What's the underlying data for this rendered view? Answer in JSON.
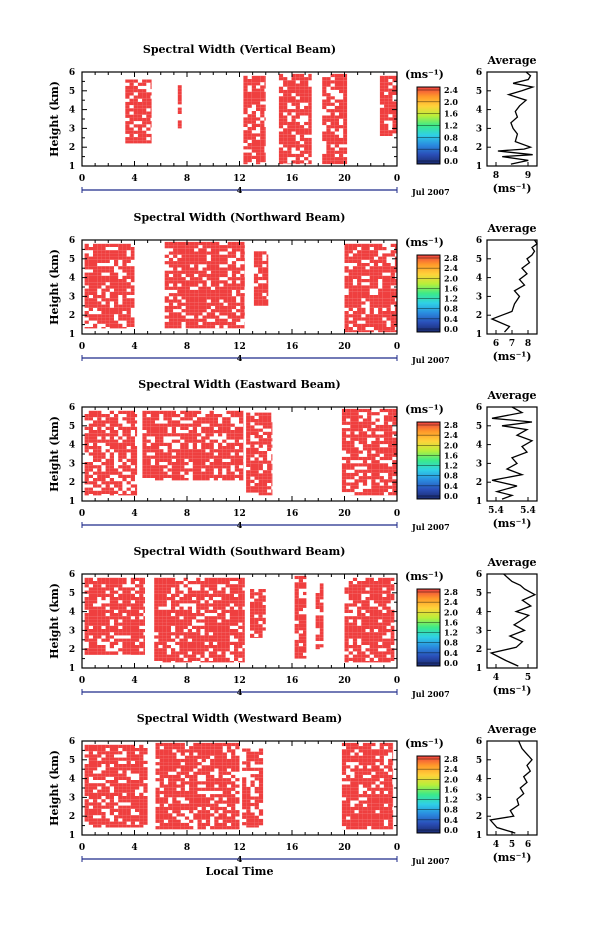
{
  "chart_data": [
    {
      "type": "heatmap",
      "title": "Spectral Width (Vertical Beam)",
      "ylabel": "Height (km)",
      "x_ticks": [
        "0",
        "4",
        "8",
        "12",
        "16",
        "20",
        "0"
      ],
      "y_ticks": [
        "1",
        "2",
        "3",
        "4",
        "5",
        "6"
      ],
      "date_marker": "4",
      "date_label": "Jul 2007",
      "xlim_hours": [
        0,
        24
      ],
      "ylim_km": [
        1,
        6
      ],
      "colorbar": {
        "unit": "(ms⁻¹)",
        "ticks": [
          "0.0",
          "0.4",
          "0.8",
          "1.2",
          "1.6",
          "2.0",
          "2.4"
        ]
      },
      "filled_regions": [
        {
          "t0": 3.3,
          "t1": 5.3,
          "h0": 2.2,
          "h1": 5.6
        },
        {
          "t0": 7.3,
          "t1": 7.6,
          "h0": 3.0,
          "h1": 5.3
        },
        {
          "t0": 12.3,
          "t1": 14.0,
          "h0": 1.1,
          "h1": 5.8
        },
        {
          "t0": 15.0,
          "t1": 17.5,
          "h0": 1.1,
          "h1": 5.9
        },
        {
          "t0": 18.3,
          "t1": 20.2,
          "h0": 1.1,
          "h1": 5.9
        },
        {
          "t0": 22.7,
          "t1": 24.0,
          "h0": 2.6,
          "h1": 5.8
        }
      ],
      "average": {
        "title": "Average",
        "xlabel": "(ms⁻¹)",
        "x_ticks": [
          "8",
          "9"
        ],
        "xlim": [
          7.5,
          9.8
        ],
        "ylim": [
          1,
          6
        ],
        "x": [
          8.6,
          9.4,
          8.2,
          9.6,
          8.0,
          9.2,
          9.5,
          8.8,
          8.9,
          8.7,
          8.6,
          8.9,
          8.8,
          9.0,
          9.3,
          8.5,
          9.1,
          9.6,
          8.7,
          9.4,
          9.5,
          9.3
        ],
        "y": [
          1.1,
          1.3,
          1.5,
          1.6,
          1.8,
          1.9,
          2.0,
          2.3,
          2.7,
          3.0,
          3.3,
          3.6,
          3.9,
          4.2,
          4.5,
          4.8,
          5.0,
          5.2,
          5.4,
          5.6,
          5.8,
          6.0
        ]
      }
    },
    {
      "type": "heatmap",
      "title": "Spectral Width (Northward Beam)",
      "ylabel": "Height (km)",
      "x_ticks": [
        "0",
        "4",
        "8",
        "12",
        "16",
        "20",
        "0"
      ],
      "y_ticks": [
        "1",
        "2",
        "3",
        "4",
        "5",
        "6"
      ],
      "date_marker": "4",
      "date_label": "Jul 2007",
      "xlim_hours": [
        0,
        24
      ],
      "ylim_km": [
        1,
        6
      ],
      "colorbar": {
        "unit": "(ms⁻¹)",
        "ticks": [
          "0.0",
          "0.4",
          "0.8",
          "1.2",
          "1.6",
          "2.0",
          "2.4",
          "2.8"
        ]
      },
      "filled_regions": [
        {
          "t0": 0.2,
          "t1": 4.0,
          "h0": 1.3,
          "h1": 5.8
        },
        {
          "t0": 6.3,
          "t1": 12.4,
          "h0": 1.3,
          "h1": 5.9
        },
        {
          "t0": 13.1,
          "t1": 14.2,
          "h0": 2.5,
          "h1": 5.4
        },
        {
          "t0": 20.0,
          "t1": 24.0,
          "h0": 1.1,
          "h1": 5.8
        }
      ],
      "average": {
        "title": "Average",
        "xlabel": "(ms⁻¹)",
        "x_ticks": [
          "6",
          "7",
          "8"
        ],
        "xlim": [
          6,
          8
        ],
        "ylim": [
          1,
          6
        ],
        "x": [
          6.7,
          6.9,
          6.2,
          6.6,
          7.0,
          7.1,
          7.3,
          7.1,
          7.5,
          7.3,
          7.6,
          7.4,
          7.7,
          7.6,
          7.8,
          7.9,
          7.8,
          8.0,
          7.9
        ],
        "y": [
          1.1,
          1.4,
          1.8,
          2.0,
          2.2,
          2.6,
          3.0,
          3.3,
          3.6,
          3.9,
          4.2,
          4.5,
          4.8,
          5.0,
          5.2,
          5.4,
          5.6,
          5.8,
          6.0
        ]
      }
    },
    {
      "type": "heatmap",
      "title": "Spectral Width (Eastward Beam)",
      "ylabel": "Height (km)",
      "x_ticks": [
        "0",
        "4",
        "8",
        "12",
        "16",
        "20",
        "0"
      ],
      "y_ticks": [
        "1",
        "2",
        "3",
        "4",
        "5",
        "6"
      ],
      "date_marker": "4",
      "date_label": "Jul 2007",
      "xlim_hours": [
        0,
        24
      ],
      "ylim_km": [
        1,
        6
      ],
      "colorbar": {
        "unit": "(ms⁻¹)",
        "ticks": [
          "0.0",
          "0.4",
          "0.8",
          "1.2",
          "1.6",
          "2.0",
          "2.4",
          "2.8"
        ]
      },
      "filled_regions": [
        {
          "t0": 0.2,
          "t1": 4.2,
          "h0": 1.3,
          "h1": 5.8
        },
        {
          "t0": 4.6,
          "t1": 12.3,
          "h0": 2.1,
          "h1": 5.8
        },
        {
          "t0": 12.5,
          "t1": 14.5,
          "h0": 1.3,
          "h1": 5.7
        },
        {
          "t0": 19.8,
          "t1": 24.0,
          "h0": 1.3,
          "h1": 5.9
        }
      ],
      "average": {
        "title": "Average",
        "xlabel": "(ms⁻¹)",
        "x_ticks": [
          "5.4",
          "5.4"
        ],
        "xlim": [
          5.0,
          6.0
        ],
        "ylim": [
          1,
          6
        ],
        "x": [
          5.3,
          5.5,
          5.2,
          5.6,
          5.1,
          5.7,
          5.4,
          5.6,
          5.5,
          5.8,
          5.7,
          5.9,
          5.6,
          5.8,
          5.3,
          5.9,
          5.1,
          5.7,
          5.5
        ],
        "y": [
          1.1,
          1.3,
          1.5,
          1.8,
          2.1,
          2.4,
          2.7,
          3.0,
          3.3,
          3.6,
          3.9,
          4.2,
          4.5,
          4.8,
          5.0,
          5.2,
          5.4,
          5.7,
          6.0
        ]
      }
    },
    {
      "type": "heatmap",
      "title": "Spectral Width (Southward Beam)",
      "ylabel": "Height (km)",
      "x_ticks": [
        "0",
        "4",
        "8",
        "12",
        "16",
        "20",
        "0"
      ],
      "y_ticks": [
        "1",
        "2",
        "3",
        "4",
        "5",
        "6"
      ],
      "date_marker": "4",
      "date_label": "Jul 2007",
      "xlim_hours": [
        0,
        24
      ],
      "ylim_km": [
        1,
        6
      ],
      "colorbar": {
        "unit": "(ms⁻¹)",
        "ticks": [
          "0.0",
          "0.4",
          "0.8",
          "1.2",
          "1.6",
          "2.0",
          "2.4",
          "2.8"
        ]
      },
      "filled_regions": [
        {
          "t0": 0.2,
          "t1": 4.8,
          "h0": 1.7,
          "h1": 5.8
        },
        {
          "t0": 5.5,
          "t1": 12.4,
          "h0": 1.3,
          "h1": 5.8
        },
        {
          "t0": 12.8,
          "t1": 14.0,
          "h0": 2.6,
          "h1": 5.2
        },
        {
          "t0": 16.2,
          "t1": 17.1,
          "h0": 1.5,
          "h1": 5.9
        },
        {
          "t0": 17.8,
          "t1": 18.4,
          "h0": 2.0,
          "h1": 5.5
        },
        {
          "t0": 20.0,
          "t1": 23.8,
          "h0": 1.3,
          "h1": 5.8
        }
      ],
      "average": {
        "title": "Average",
        "xlabel": "(ms⁻¹)",
        "x_ticks": [
          "4",
          "5"
        ],
        "xlim": [
          3.2,
          5.6
        ],
        "ylim": [
          1,
          6
        ],
        "x": [
          4.7,
          4.1,
          3.4,
          4.6,
          4.9,
          4.3,
          5.0,
          4.5,
          4.8,
          5.2,
          4.6,
          5.3,
          4.9,
          5.5,
          5.0,
          4.8,
          4.4,
          4.2,
          4.0
        ],
        "y": [
          1.1,
          1.4,
          1.8,
          2.1,
          2.4,
          2.7,
          3.0,
          3.3,
          3.5,
          3.8,
          4.0,
          4.3,
          4.6,
          4.9,
          5.2,
          5.4,
          5.6,
          5.8,
          6.0
        ]
      }
    },
    {
      "type": "heatmap",
      "title": "Spectral Width (Westward Beam)",
      "ylabel": "Height (km)",
      "xlabel": "Local Time",
      "x_ticks": [
        "0",
        "4",
        "8",
        "12",
        "16",
        "20",
        "0"
      ],
      "y_ticks": [
        "1",
        "2",
        "3",
        "4",
        "5",
        "6"
      ],
      "date_marker": "4",
      "date_label": "Jul 2007",
      "xlim_hours": [
        0,
        24
      ],
      "ylim_km": [
        1,
        6
      ],
      "colorbar": {
        "unit": "(ms⁻¹)",
        "ticks": [
          "0.0",
          "0.4",
          "0.8",
          "1.2",
          "1.6",
          "2.0",
          "2.4",
          "2.8"
        ]
      },
      "filled_regions": [
        {
          "t0": 0.2,
          "t1": 5.0,
          "h0": 1.4,
          "h1": 5.8
        },
        {
          "t0": 5.6,
          "t1": 12.0,
          "h0": 1.3,
          "h1": 5.9
        },
        {
          "t0": 12.2,
          "t1": 13.8,
          "h0": 1.4,
          "h1": 5.6
        },
        {
          "t0": 19.8,
          "t1": 23.7,
          "h0": 1.3,
          "h1": 5.9
        }
      ],
      "average": {
        "title": "Average",
        "xlabel": "(ms⁻¹)",
        "x_ticks": [
          "4",
          "5",
          "6"
        ],
        "xlim": [
          3.6,
          6.6
        ],
        "ylim": [
          1,
          6
        ],
        "x": [
          5.3,
          4.2,
          3.8,
          5.2,
          5.0,
          5.5,
          5.4,
          5.8,
          5.6,
          6.0,
          5.8,
          6.2,
          6.0,
          6.3,
          6.1,
          5.9,
          5.7,
          5.6,
          5.5
        ],
        "y": [
          1.1,
          1.4,
          1.8,
          2.0,
          2.3,
          2.6,
          2.9,
          3.2,
          3.5,
          3.8,
          4.1,
          4.4,
          4.7,
          5.0,
          5.2,
          5.4,
          5.6,
          5.8,
          6.0
        ]
      }
    }
  ],
  "colors": {
    "fill": "#ef3f3f",
    "colorbar_stops": [
      "#1a2a6e",
      "#2a4fb8",
      "#2a8de0",
      "#2fd0e6",
      "#3bea8a",
      "#b8ef3a",
      "#ffd23a",
      "#ff9a2a",
      "#ef3f3f"
    ]
  }
}
